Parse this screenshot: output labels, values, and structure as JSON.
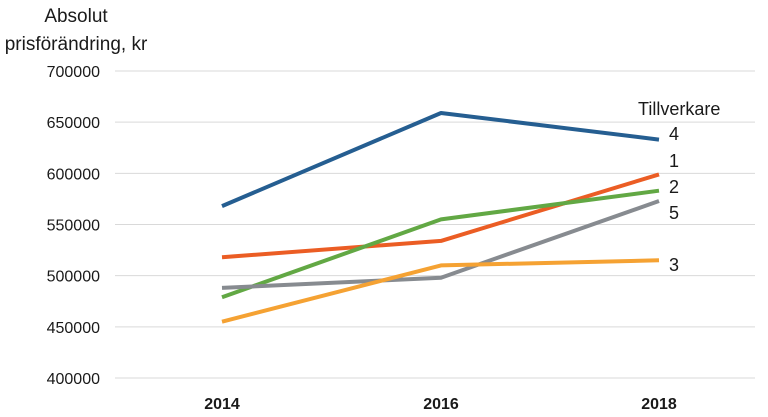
{
  "chart_data": {
    "type": "line",
    "ylabel": [
      "Absolut",
      "prisförändring, kr"
    ],
    "legend_title": "Tillverkare",
    "legend_placement": "right (labels at line ends)",
    "x": [
      "2014",
      "2016",
      "2018"
    ],
    "ylim": [
      400000,
      700000
    ],
    "yticks": [
      400000,
      450000,
      500000,
      550000,
      600000,
      650000,
      700000
    ],
    "ytick_labels": [
      "400000",
      "450000",
      "500000",
      "550000",
      "600000",
      "650000",
      "700000"
    ],
    "grid": "horizontal",
    "series": [
      {
        "name": "4",
        "color": "#255e91",
        "values": [
          568000,
          659000,
          633000
        ]
      },
      {
        "name": "1",
        "color": "#eb5d24",
        "values": [
          518000,
          534000,
          599000
        ]
      },
      {
        "name": "2",
        "color": "#62a844",
        "values": [
          479000,
          555000,
          583000
        ]
      },
      {
        "name": "5",
        "color": "#878b90",
        "values": [
          488000,
          498000,
          573000
        ]
      },
      {
        "name": "3",
        "color": "#f5a233",
        "values": [
          455000,
          510000,
          515000
        ]
      }
    ]
  }
}
